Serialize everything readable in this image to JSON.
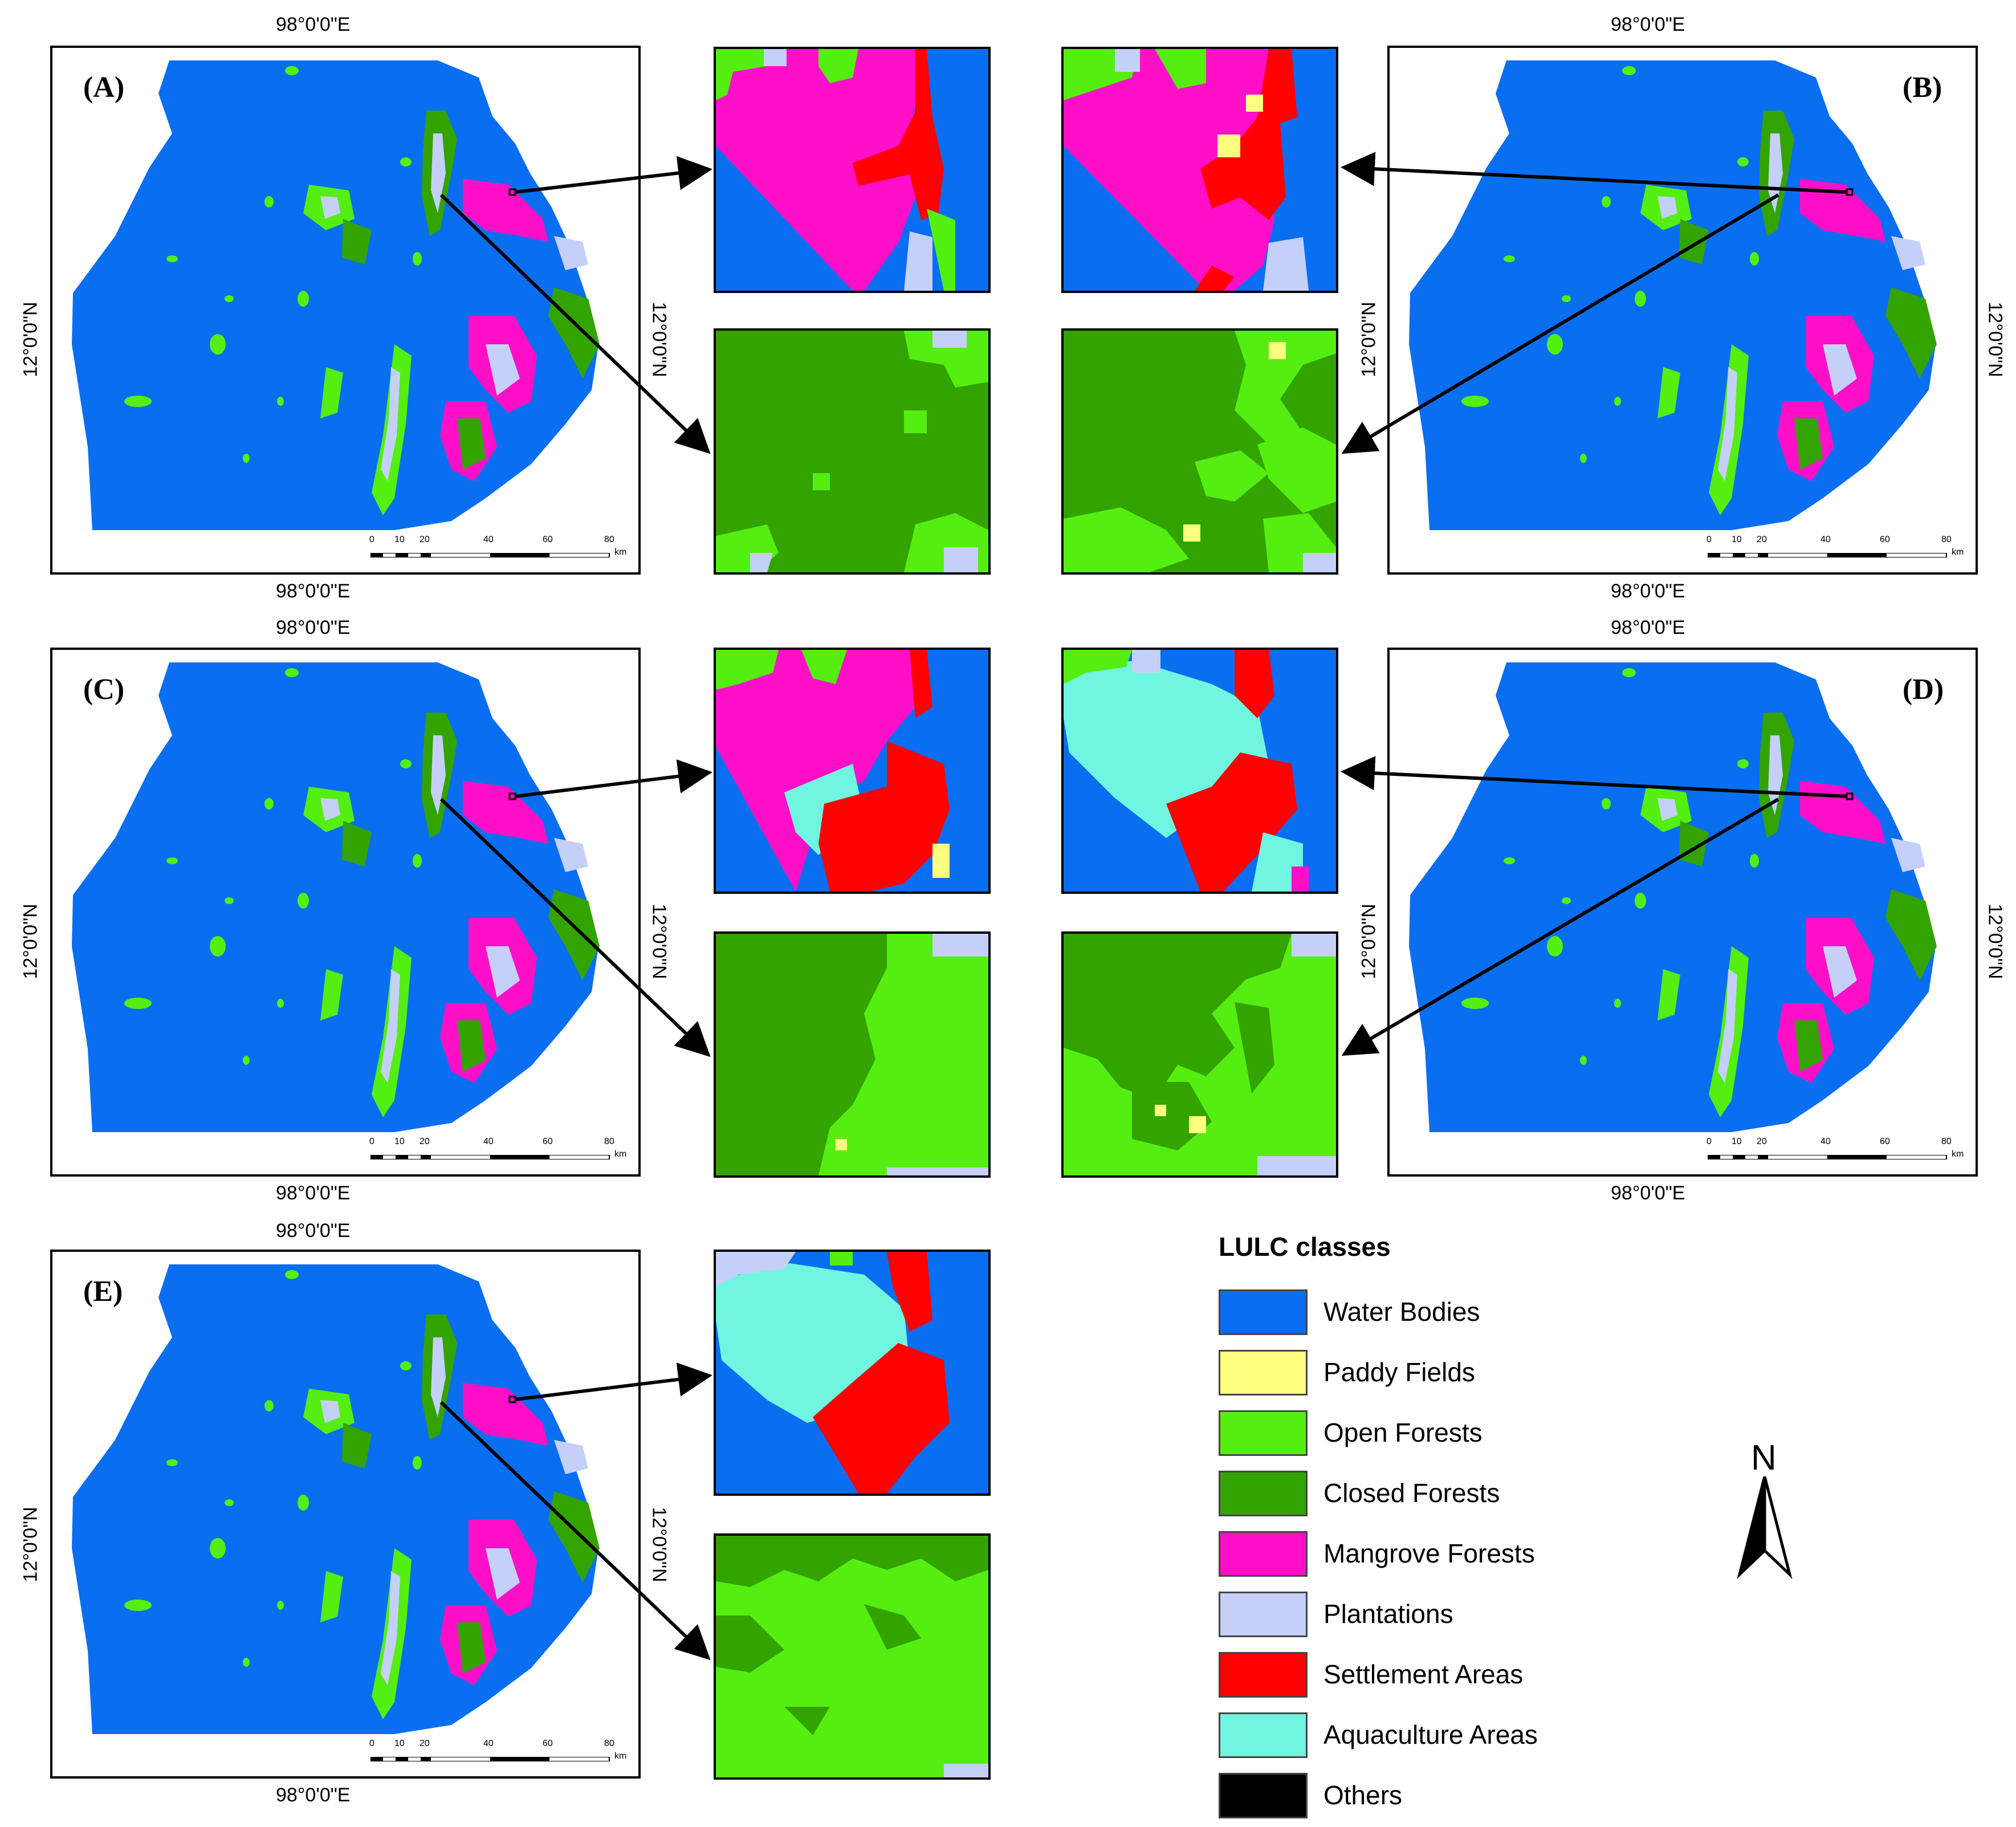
{
  "panels": [
    {
      "label": "(A)",
      "top_coord": "98°0'0\"E",
      "bottom_coord": "98°0'0\"E",
      "left_coord": "12°0'0\"N",
      "right_coord": "12°0'0\"N"
    },
    {
      "label": "(B)",
      "top_coord": "98°0'0\"E",
      "bottom_coord": "98°0'0\"E",
      "left_coord": "12°0'0\"N",
      "right_coord": "12°0'0\"N"
    },
    {
      "label": "(C)",
      "top_coord": "98°0'0\"E",
      "bottom_coord": "98°0'0\"E",
      "left_coord": "12°0'0\"N",
      "right_coord": "12°0'0\"N"
    },
    {
      "label": "(D)",
      "top_coord": "98°0'0\"E",
      "bottom_coord": "98°0'0\"E",
      "left_coord": "12°0'0\"N",
      "right_coord": "12°0'0\"N"
    },
    {
      "label": "(E)",
      "top_coord": "98°0'0\"E",
      "bottom_coord": "98°0'0\"E",
      "left_coord": "12°0'0\"N",
      "right_coord": "12°0'0\"N"
    }
  ],
  "scale_bar": {
    "ticks": [
      "0",
      "10",
      "20",
      "40",
      "60",
      "80"
    ],
    "unit": "km"
  },
  "legend": {
    "title": "LULC classes",
    "classes": [
      {
        "name": "Water Bodies",
        "color": "#0a6ef0"
      },
      {
        "name": "Paddy Fields",
        "color": "#ffff80"
      },
      {
        "name": "Open Forests",
        "color": "#55ee11"
      },
      {
        "name": "Closed Forests",
        "color": "#33a300"
      },
      {
        "name": "Mangrove Forests",
        "color": "#ff10c8"
      },
      {
        "name": "Plantations",
        "color": "#c4d0f8"
      },
      {
        "name": "Settlement Areas",
        "color": "#ff0000"
      },
      {
        "name": "Aquaculture Areas",
        "color": "#70f5e0"
      },
      {
        "name": "Others",
        "color": "#000000"
      }
    ]
  },
  "north_arrow": {
    "letter": "N",
    "icon": "north-arrow-icon"
  }
}
